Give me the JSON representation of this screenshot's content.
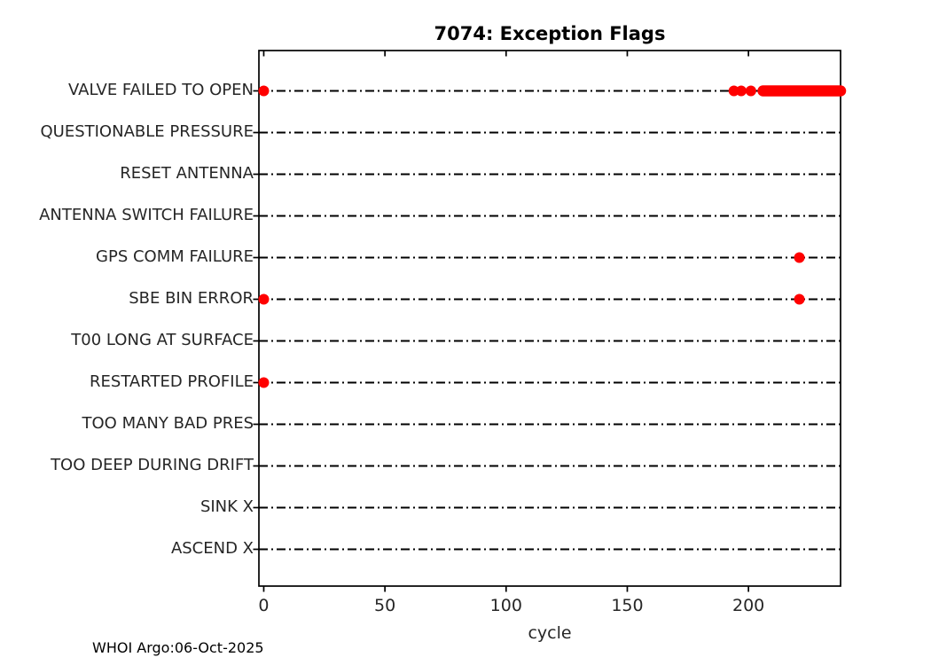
{
  "chart_data": {
    "type": "scatter",
    "title": "7074: Exception Flags",
    "xlabel": "cycle",
    "footer": "WHOI Argo:06-Oct-2025",
    "xlim": [
      -2,
      238
    ],
    "xticks": [
      0,
      50,
      100,
      150,
      200
    ],
    "grid": "horizontal-dash-dot-lines",
    "legend": "none",
    "marker_color": "#ff0000",
    "axis_color": "#000000",
    "label_color": "#262626",
    "rows": [
      {
        "label": "VALVE FAILED TO OPEN",
        "points": [
          0,
          194,
          197,
          201
        ],
        "bands": [
          [
            206,
            238
          ]
        ]
      },
      {
        "label": "QUESTIONABLE PRESSURE",
        "points": [],
        "bands": []
      },
      {
        "label": "RESET ANTENNA",
        "points": [],
        "bands": []
      },
      {
        "label": "ANTENNA SWITCH FAILURE",
        "points": [],
        "bands": []
      },
      {
        "label": "GPS COMM FAILURE",
        "points": [
          221
        ],
        "bands": []
      },
      {
        "label": "SBE BIN ERROR",
        "points": [
          0,
          221
        ],
        "bands": []
      },
      {
        "label": "T00 LONG AT SURFACE",
        "points": [],
        "bands": []
      },
      {
        "label": "RESTARTED PROFILE",
        "points": [
          0
        ],
        "bands": []
      },
      {
        "label": "TOO MANY BAD PRES",
        "points": [],
        "bands": []
      },
      {
        "label": "TOO DEEP DURING DRIFT",
        "points": [],
        "bands": []
      },
      {
        "label": "SINK X",
        "points": [],
        "bands": []
      },
      {
        "label": "ASCEND X",
        "points": [],
        "bands": []
      }
    ]
  }
}
